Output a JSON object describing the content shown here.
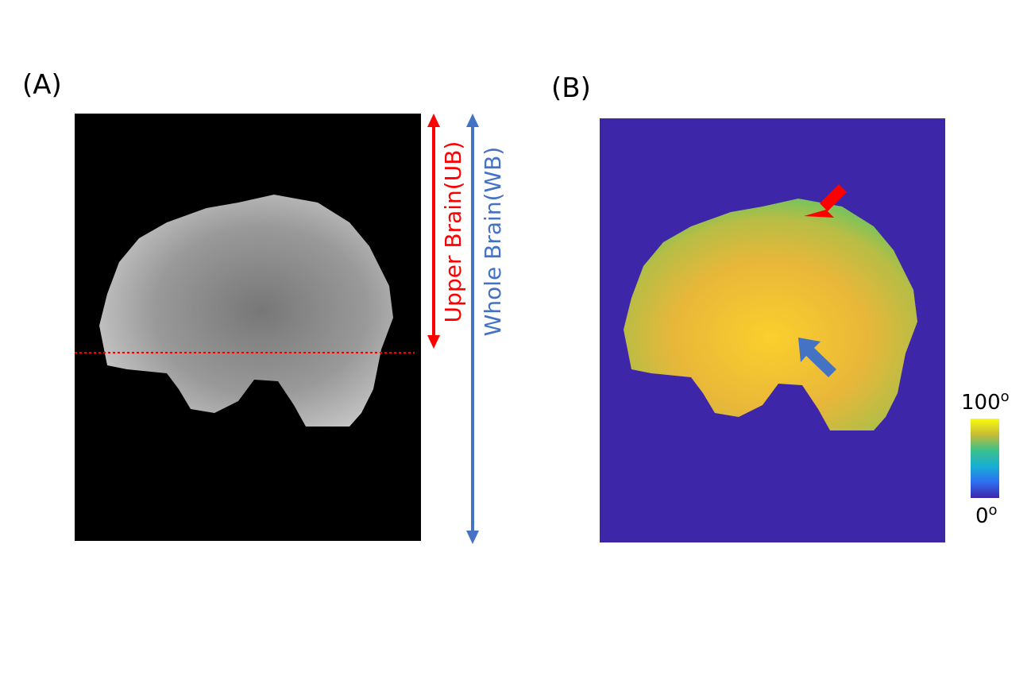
{
  "panel_a": {
    "label": "(A)",
    "upper_brain_label": "Upper Brain(UB)",
    "whole_brain_label": "Whole Brain(WB)"
  },
  "panel_b": {
    "label": "(B)",
    "colorbar": {
      "max": {
        "number": "100",
        "unit": "o"
      },
      "min": {
        "number": "0",
        "unit": "o"
      }
    }
  }
}
